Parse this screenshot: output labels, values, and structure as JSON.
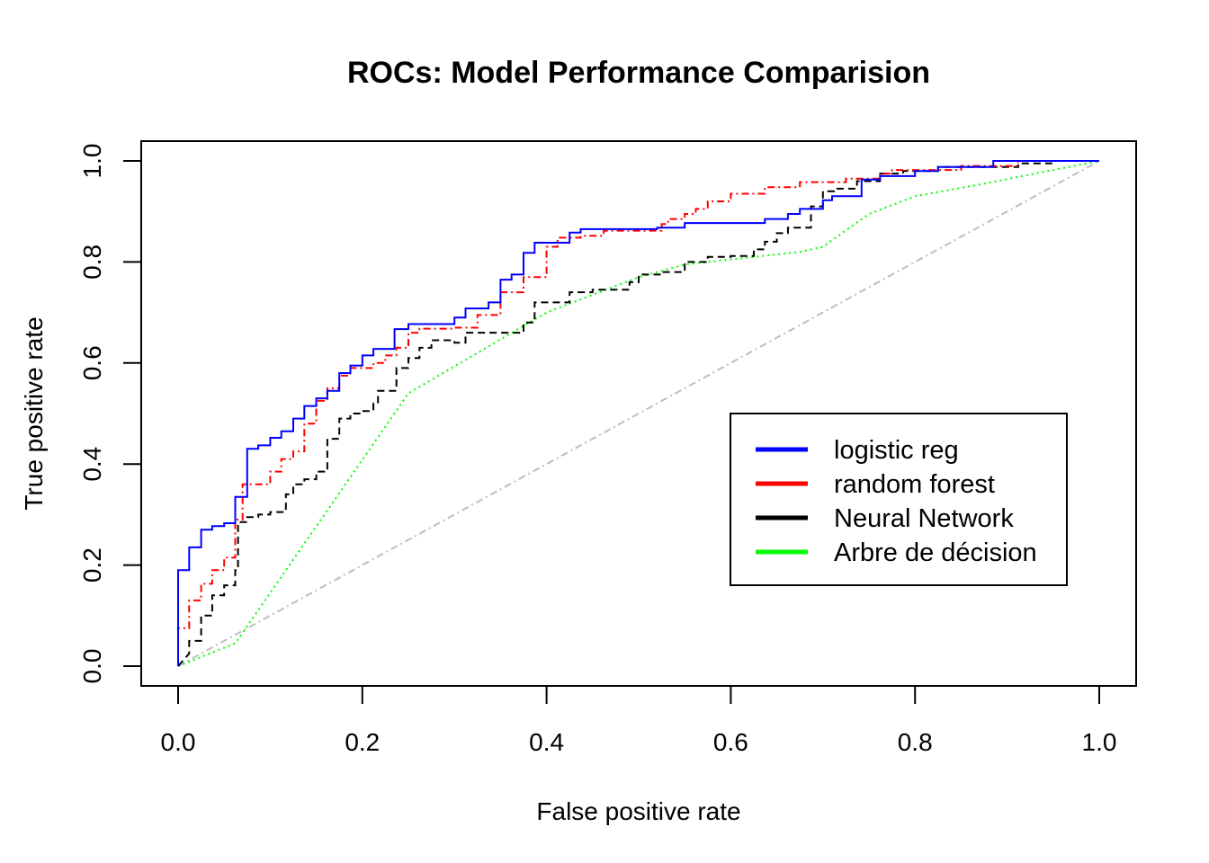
{
  "chart_data": {
    "type": "line",
    "title": "ROCs: Model Performance Comparision",
    "xlabel": "False positive rate",
    "ylabel": "True positive rate",
    "xlim": [
      0,
      1
    ],
    "ylim": [
      0,
      1
    ],
    "xticks": [
      "0.0",
      "0.2",
      "0.4",
      "0.6",
      "0.8",
      "1.0"
    ],
    "yticks": [
      "0.0",
      "0.2",
      "0.4",
      "0.6",
      "0.8",
      "1.0"
    ],
    "grid": false,
    "legend_position": "bottom-right",
    "series": [
      {
        "name": "logistic reg",
        "color": "#0000FF",
        "dash": "solid",
        "step": true,
        "points": [
          [
            0,
            0
          ],
          [
            0,
            0.19
          ],
          [
            0.012,
            0.19
          ],
          [
            0.012,
            0.235
          ],
          [
            0.025,
            0.235
          ],
          [
            0.025,
            0.27
          ],
          [
            0.037,
            0.27
          ],
          [
            0.037,
            0.277
          ],
          [
            0.05,
            0.277
          ],
          [
            0.05,
            0.283
          ],
          [
            0.062,
            0.283
          ],
          [
            0.062,
            0.335
          ],
          [
            0.075,
            0.335
          ],
          [
            0.075,
            0.43
          ],
          [
            0.087,
            0.43
          ],
          [
            0.087,
            0.437
          ],
          [
            0.1,
            0.437
          ],
          [
            0.1,
            0.452
          ],
          [
            0.112,
            0.452
          ],
          [
            0.112,
            0.465
          ],
          [
            0.125,
            0.465
          ],
          [
            0.125,
            0.49
          ],
          [
            0.137,
            0.49
          ],
          [
            0.137,
            0.515
          ],
          [
            0.15,
            0.515
          ],
          [
            0.15,
            0.53
          ],
          [
            0.162,
            0.53
          ],
          [
            0.162,
            0.545
          ],
          [
            0.175,
            0.545
          ],
          [
            0.175,
            0.58
          ],
          [
            0.187,
            0.58
          ],
          [
            0.187,
            0.595
          ],
          [
            0.2,
            0.595
          ],
          [
            0.2,
            0.615
          ],
          [
            0.212,
            0.615
          ],
          [
            0.212,
            0.628
          ],
          [
            0.235,
            0.628
          ],
          [
            0.235,
            0.667
          ],
          [
            0.25,
            0.667
          ],
          [
            0.25,
            0.677
          ],
          [
            0.3,
            0.677
          ],
          [
            0.3,
            0.69
          ],
          [
            0.312,
            0.69
          ],
          [
            0.312,
            0.708
          ],
          [
            0.337,
            0.708
          ],
          [
            0.337,
            0.72
          ],
          [
            0.35,
            0.72
          ],
          [
            0.35,
            0.765
          ],
          [
            0.362,
            0.765
          ],
          [
            0.362,
            0.775
          ],
          [
            0.375,
            0.775
          ],
          [
            0.375,
            0.818
          ],
          [
            0.387,
            0.818
          ],
          [
            0.387,
            0.838
          ],
          [
            0.425,
            0.838
          ],
          [
            0.425,
            0.858
          ],
          [
            0.437,
            0.858
          ],
          [
            0.437,
            0.865
          ],
          [
            0.52,
            0.865
          ],
          [
            0.52,
            0.868
          ],
          [
            0.55,
            0.868
          ],
          [
            0.55,
            0.877
          ],
          [
            0.637,
            0.877
          ],
          [
            0.637,
            0.885
          ],
          [
            0.662,
            0.885
          ],
          [
            0.662,
            0.895
          ],
          [
            0.675,
            0.895
          ],
          [
            0.675,
            0.905
          ],
          [
            0.7,
            0.905
          ],
          [
            0.7,
            0.922
          ],
          [
            0.71,
            0.922
          ],
          [
            0.71,
            0.93
          ],
          [
            0.742,
            0.93
          ],
          [
            0.742,
            0.963
          ],
          [
            0.762,
            0.963
          ],
          [
            0.762,
            0.97
          ],
          [
            0.8,
            0.97
          ],
          [
            0.8,
            0.98
          ],
          [
            0.825,
            0.98
          ],
          [
            0.825,
            0.988
          ],
          [
            0.885,
            0.988
          ],
          [
            0.885,
            1
          ],
          [
            1,
            1
          ]
        ]
      },
      {
        "name": "random forest",
        "color": "#FF0000",
        "dash": "dashdot",
        "step": true,
        "points": [
          [
            0,
            0
          ],
          [
            0,
            0.075
          ],
          [
            0.012,
            0.075
          ],
          [
            0.012,
            0.13
          ],
          [
            0.025,
            0.13
          ],
          [
            0.025,
            0.163
          ],
          [
            0.037,
            0.163
          ],
          [
            0.037,
            0.19
          ],
          [
            0.05,
            0.19
          ],
          [
            0.05,
            0.215
          ],
          [
            0.062,
            0.215
          ],
          [
            0.062,
            0.29
          ],
          [
            0.07,
            0.29
          ],
          [
            0.07,
            0.36
          ],
          [
            0.1,
            0.36
          ],
          [
            0.1,
            0.385
          ],
          [
            0.112,
            0.385
          ],
          [
            0.112,
            0.41
          ],
          [
            0.125,
            0.41
          ],
          [
            0.125,
            0.425
          ],
          [
            0.137,
            0.425
          ],
          [
            0.137,
            0.48
          ],
          [
            0.15,
            0.48
          ],
          [
            0.15,
            0.525
          ],
          [
            0.162,
            0.525
          ],
          [
            0.162,
            0.55
          ],
          [
            0.175,
            0.55
          ],
          [
            0.175,
            0.575
          ],
          [
            0.187,
            0.575
          ],
          [
            0.187,
            0.59
          ],
          [
            0.212,
            0.59
          ],
          [
            0.212,
            0.6
          ],
          [
            0.225,
            0.6
          ],
          [
            0.225,
            0.615
          ],
          [
            0.237,
            0.615
          ],
          [
            0.237,
            0.63
          ],
          [
            0.25,
            0.63
          ],
          [
            0.25,
            0.66
          ],
          [
            0.262,
            0.66
          ],
          [
            0.262,
            0.668
          ],
          [
            0.3,
            0.668
          ],
          [
            0.3,
            0.67
          ],
          [
            0.325,
            0.67
          ],
          [
            0.325,
            0.695
          ],
          [
            0.35,
            0.695
          ],
          [
            0.35,
            0.74
          ],
          [
            0.375,
            0.74
          ],
          [
            0.375,
            0.77
          ],
          [
            0.4,
            0.77
          ],
          [
            0.4,
            0.83
          ],
          [
            0.412,
            0.83
          ],
          [
            0.412,
            0.848
          ],
          [
            0.437,
            0.848
          ],
          [
            0.437,
            0.852
          ],
          [
            0.462,
            0.852
          ],
          [
            0.462,
            0.862
          ],
          [
            0.525,
            0.862
          ],
          [
            0.525,
            0.875
          ],
          [
            0.532,
            0.875
          ],
          [
            0.532,
            0.885
          ],
          [
            0.55,
            0.885
          ],
          [
            0.55,
            0.895
          ],
          [
            0.562,
            0.895
          ],
          [
            0.562,
            0.905
          ],
          [
            0.575,
            0.905
          ],
          [
            0.575,
            0.92
          ],
          [
            0.6,
            0.92
          ],
          [
            0.6,
            0.935
          ],
          [
            0.637,
            0.935
          ],
          [
            0.637,
            0.948
          ],
          [
            0.675,
            0.948
          ],
          [
            0.675,
            0.958
          ],
          [
            0.725,
            0.958
          ],
          [
            0.725,
            0.965
          ],
          [
            0.762,
            0.965
          ],
          [
            0.762,
            0.975
          ],
          [
            0.775,
            0.975
          ],
          [
            0.775,
            0.982
          ],
          [
            0.85,
            0.982
          ],
          [
            0.85,
            0.99
          ],
          [
            0.912,
            0.99
          ],
          [
            0.912,
            1
          ],
          [
            1,
            1
          ]
        ]
      },
      {
        "name": "Neural Network",
        "color": "#000000",
        "dash": "dashed",
        "step": true,
        "points": [
          [
            0,
            0
          ],
          [
            0.012,
            0.025
          ],
          [
            0.012,
            0.05
          ],
          [
            0.025,
            0.05
          ],
          [
            0.025,
            0.1
          ],
          [
            0.037,
            0.1
          ],
          [
            0.037,
            0.14
          ],
          [
            0.05,
            0.14
          ],
          [
            0.05,
            0.16
          ],
          [
            0.062,
            0.16
          ],
          [
            0.062,
            0.19
          ],
          [
            0.065,
            0.19
          ],
          [
            0.065,
            0.285
          ],
          [
            0.075,
            0.285
          ],
          [
            0.075,
            0.295
          ],
          [
            0.087,
            0.295
          ],
          [
            0.087,
            0.3
          ],
          [
            0.1,
            0.3
          ],
          [
            0.1,
            0.305
          ],
          [
            0.117,
            0.305
          ],
          [
            0.117,
            0.34
          ],
          [
            0.125,
            0.34
          ],
          [
            0.125,
            0.36
          ],
          [
            0.137,
            0.36
          ],
          [
            0.137,
            0.37
          ],
          [
            0.15,
            0.37
          ],
          [
            0.15,
            0.385
          ],
          [
            0.162,
            0.385
          ],
          [
            0.162,
            0.45
          ],
          [
            0.175,
            0.45
          ],
          [
            0.175,
            0.49
          ],
          [
            0.187,
            0.49
          ],
          [
            0.187,
            0.5
          ],
          [
            0.2,
            0.5
          ],
          [
            0.2,
            0.505
          ],
          [
            0.212,
            0.505
          ],
          [
            0.212,
            0.52
          ],
          [
            0.217,
            0.52
          ],
          [
            0.217,
            0.545
          ],
          [
            0.237,
            0.545
          ],
          [
            0.237,
            0.59
          ],
          [
            0.25,
            0.59
          ],
          [
            0.25,
            0.61
          ],
          [
            0.262,
            0.61
          ],
          [
            0.262,
            0.63
          ],
          [
            0.275,
            0.63
          ],
          [
            0.275,
            0.645
          ],
          [
            0.3,
            0.645
          ],
          [
            0.3,
            0.64
          ],
          [
            0.312,
            0.64
          ],
          [
            0.312,
            0.66
          ],
          [
            0.375,
            0.66
          ],
          [
            0.375,
            0.68
          ],
          [
            0.387,
            0.68
          ],
          [
            0.387,
            0.72
          ],
          [
            0.425,
            0.72
          ],
          [
            0.425,
            0.74
          ],
          [
            0.45,
            0.74
          ],
          [
            0.45,
            0.745
          ],
          [
            0.49,
            0.745
          ],
          [
            0.49,
            0.76
          ],
          [
            0.5,
            0.76
          ],
          [
            0.5,
            0.775
          ],
          [
            0.525,
            0.775
          ],
          [
            0.525,
            0.78
          ],
          [
            0.55,
            0.78
          ],
          [
            0.55,
            0.8
          ],
          [
            0.575,
            0.8
          ],
          [
            0.575,
            0.81
          ],
          [
            0.6,
            0.81
          ],
          [
            0.6,
            0.812
          ],
          [
            0.625,
            0.812
          ],
          [
            0.625,
            0.825
          ],
          [
            0.637,
            0.825
          ],
          [
            0.637,
            0.84
          ],
          [
            0.65,
            0.84
          ],
          [
            0.65,
            0.857
          ],
          [
            0.662,
            0.857
          ],
          [
            0.662,
            0.868
          ],
          [
            0.687,
            0.868
          ],
          [
            0.687,
            0.91
          ],
          [
            0.7,
            0.91
          ],
          [
            0.7,
            0.94
          ],
          [
            0.712,
            0.94
          ],
          [
            0.712,
            0.945
          ],
          [
            0.737,
            0.945
          ],
          [
            0.737,
            0.96
          ],
          [
            0.762,
            0.96
          ],
          [
            0.762,
            0.975
          ],
          [
            0.787,
            0.975
          ],
          [
            0.787,
            0.98
          ],
          [
            0.825,
            0.98
          ],
          [
            0.825,
            0.988
          ],
          [
            0.912,
            0.988
          ],
          [
            0.912,
            0.995
          ],
          [
            0.95,
            0.995
          ],
          [
            0.95,
            1
          ],
          [
            1,
            1
          ]
        ]
      },
      {
        "name": "Arbre de décision",
        "color": "#00FF00",
        "dash": "dotted",
        "step": false,
        "points": [
          [
            0,
            0
          ],
          [
            0.062,
            0.045
          ],
          [
            0.25,
            0.54
          ],
          [
            0.4,
            0.7
          ],
          [
            0.5,
            0.77
          ],
          [
            0.55,
            0.795
          ],
          [
            0.675,
            0.82
          ],
          [
            0.7,
            0.83
          ],
          [
            0.75,
            0.895
          ],
          [
            0.8,
            0.93
          ],
          [
            0.875,
            0.955
          ],
          [
            1,
            1
          ]
        ]
      },
      {
        "name": "",
        "color": "#BEBEBE",
        "dash": "dashdot",
        "step": false,
        "points": [
          [
            0,
            0
          ],
          [
            1,
            1
          ]
        ]
      }
    ]
  }
}
